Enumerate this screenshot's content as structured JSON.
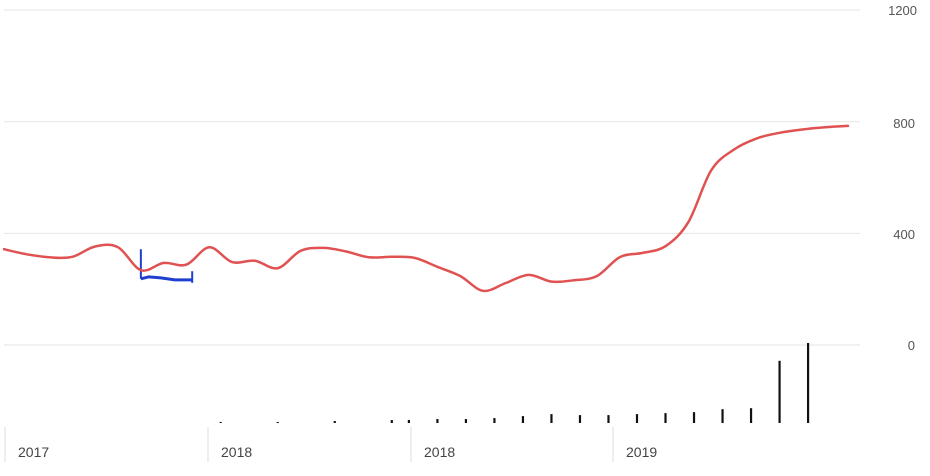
{
  "chart_data": {
    "type": "line",
    "title": "",
    "xlabel": "",
    "ylabel": "",
    "ylim": [
      0,
      1200
    ],
    "y_ticks": [
      "1200",
      "800",
      "400",
      "0"
    ],
    "y_tick_values": [
      1200,
      800,
      400,
      0
    ],
    "x_tick_labels": [
      "2017",
      "2018",
      "2018",
      "2019"
    ],
    "grid": true,
    "legend": "none",
    "colors": {
      "line": "#e05252",
      "annotation": "#1f3fd1",
      "volume": "#111111",
      "grid": "#e6e6e6"
    },
    "series": [
      {
        "x": [
          0,
          4,
          8,
          12,
          16,
          20,
          24,
          28,
          32,
          36,
          40,
          44,
          48,
          52,
          56,
          60,
          64,
          68,
          72,
          76,
          80,
          84,
          88,
          92,
          96,
          100,
          104,
          108,
          112,
          116,
          120,
          124,
          128,
          132,
          136,
          140,
          144,
          148
        ],
        "y": [
          343,
          325,
          314,
          316,
          353,
          350,
          268,
          294,
          288,
          350,
          297,
          302,
          275,
          337,
          348,
          335,
          314,
          316,
          312,
          280,
          247,
          194,
          222,
          251,
          227,
          232,
          247,
          315,
          330,
          354,
          440,
          625,
          700,
          740,
          760,
          772,
          780,
          785
        ]
      }
    ],
    "annotation": {
      "type": "bracket",
      "x_start": 24,
      "x_end": 33,
      "y_top": 343,
      "y_bottom": 237
    },
    "volume": {
      "x": [
        38,
        48,
        58,
        68,
        71,
        76,
        81,
        86,
        91,
        96,
        101,
        106,
        111,
        116,
        121,
        126,
        131,
        136,
        141
      ],
      "values": [
        1,
        1,
        2,
        3,
        3,
        4,
        4,
        5,
        7,
        9,
        8,
        8,
        9,
        10,
        11,
        14,
        15,
        63,
        81
      ]
    }
  }
}
